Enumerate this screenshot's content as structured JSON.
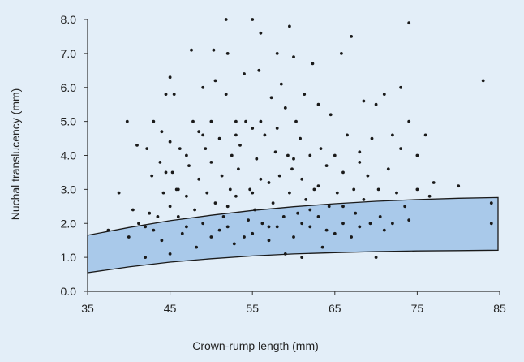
{
  "chart_data": {
    "type": "scatter",
    "xlabel": "Crown-rump length (mm)",
    "ylabel": "Nuchal translucency (mm)",
    "xlim": [
      35,
      85
    ],
    "ylim": [
      0,
      8
    ],
    "x_ticks": [
      "35",
      "45",
      "55",
      "65",
      "75",
      "85"
    ],
    "y_ticks": [
      "0.0",
      "1.0",
      "2.0",
      "3.0",
      "4.0",
      "5.0",
      "6.0",
      "7.0",
      "8.0"
    ],
    "grid": false,
    "band": {
      "fill": "#a9c9ea",
      "stroke": "#1a1a1a",
      "upper": [
        [
          35,
          1.65
        ],
        [
          40,
          1.88
        ],
        [
          45,
          2.08
        ],
        [
          50,
          2.24
        ],
        [
          55,
          2.38
        ],
        [
          60,
          2.49
        ],
        [
          65,
          2.58
        ],
        [
          70,
          2.65
        ],
        [
          75,
          2.7
        ],
        [
          80,
          2.74
        ],
        [
          84.8,
          2.76
        ]
      ],
      "lower": [
        [
          35,
          0.55
        ],
        [
          40,
          0.72
        ],
        [
          45,
          0.86
        ],
        [
          50,
          0.96
        ],
        [
          55,
          1.04
        ],
        [
          60,
          1.1
        ],
        [
          65,
          1.14
        ],
        [
          70,
          1.17
        ],
        [
          75,
          1.19
        ],
        [
          80,
          1.2
        ],
        [
          84.8,
          1.21
        ]
      ]
    },
    "points": [
      [
        37.5,
        1.8
      ],
      [
        38.8,
        2.9
      ],
      [
        39.8,
        5.0
      ],
      [
        40,
        1.6
      ],
      [
        40.5,
        2.4
      ],
      [
        41,
        4.3
      ],
      [
        41.2,
        2.0
      ],
      [
        42,
        1.0
      ],
      [
        42,
        1.9
      ],
      [
        42.2,
        4.2
      ],
      [
        42.5,
        2.3
      ],
      [
        42.8,
        3.4
      ],
      [
        43,
        5.0
      ],
      [
        43,
        1.8
      ],
      [
        43.5,
        2.2
      ],
      [
        43.8,
        3.8
      ],
      [
        44,
        4.7
      ],
      [
        44.2,
        2.9
      ],
      [
        44.5,
        5.8
      ],
      [
        44.5,
        3.5
      ],
      [
        45,
        6.3
      ],
      [
        45,
        4.4
      ],
      [
        45,
        2.5
      ],
      [
        45,
        1.1
      ],
      [
        45.3,
        3.5
      ],
      [
        45.5,
        5.8
      ],
      [
        45.8,
        3.0
      ],
      [
        46,
        2.2
      ],
      [
        46.2,
        4.2
      ],
      [
        46.5,
        1.7
      ],
      [
        47,
        2.8
      ],
      [
        47,
        1.9
      ],
      [
        47.3,
        3.7
      ],
      [
        47.6,
        7.1
      ],
      [
        47.8,
        5.0
      ],
      [
        48,
        2.4
      ],
      [
        48.2,
        1.3
      ],
      [
        48.5,
        4.7
      ],
      [
        48.5,
        3.3
      ],
      [
        49,
        6.0
      ],
      [
        49,
        2.0
      ],
      [
        49.3,
        4.2
      ],
      [
        49.5,
        2.9
      ],
      [
        50,
        1.6
      ],
      [
        50,
        5.0
      ],
      [
        50,
        3.8
      ],
      [
        50.3,
        7.1
      ],
      [
        50.5,
        6.2
      ],
      [
        50.5,
        2.6
      ],
      [
        51,
        4.5
      ],
      [
        51,
        1.8
      ],
      [
        51.3,
        3.4
      ],
      [
        51.5,
        2.2
      ],
      [
        51.8,
        8.0
      ],
      [
        51.8,
        5.8
      ],
      [
        52,
        7.0
      ],
      [
        52,
        1.9
      ],
      [
        52.3,
        3.0
      ],
      [
        52.5,
        4.0
      ],
      [
        52.8,
        1.4
      ],
      [
        53,
        5.0
      ],
      [
        53,
        2.8
      ],
      [
        53.3,
        3.6
      ],
      [
        53.5,
        4.3
      ],
      [
        54,
        6.4
      ],
      [
        54,
        1.6
      ],
      [
        54.2,
        5.0
      ],
      [
        54.5,
        2.1
      ],
      [
        54.7,
        3.0
      ],
      [
        55,
        8.0
      ],
      [
        55,
        4.8
      ],
      [
        55,
        1.7
      ],
      [
        55.3,
        2.4
      ],
      [
        55.5,
        3.9
      ],
      [
        55.8,
        6.5
      ],
      [
        56,
        7.6
      ],
      [
        56,
        5.0
      ],
      [
        56.2,
        2.0
      ],
      [
        56.5,
        4.6
      ],
      [
        57,
        3.2
      ],
      [
        57,
        1.5
      ],
      [
        57.3,
        5.7
      ],
      [
        57.5,
        2.6
      ],
      [
        57.8,
        4.1
      ],
      [
        58,
        7.0
      ],
      [
        58,
        1.9
      ],
      [
        58.3,
        3.4
      ],
      [
        58.5,
        6.1
      ],
      [
        58.8,
        2.2
      ],
      [
        59,
        5.4
      ],
      [
        59,
        1.1
      ],
      [
        59.3,
        4.0
      ],
      [
        59.5,
        7.8
      ],
      [
        59.5,
        2.9
      ],
      [
        59.8,
        3.6
      ],
      [
        60,
        6.9
      ],
      [
        60,
        1.6
      ],
      [
        60.3,
        5.0
      ],
      [
        60.5,
        2.3
      ],
      [
        60.8,
        4.5
      ],
      [
        61,
        1.0
      ],
      [
        61,
        3.3
      ],
      [
        61.3,
        5.8
      ],
      [
        61.5,
        2.7
      ],
      [
        62,
        4.0
      ],
      [
        62,
        1.9
      ],
      [
        62.3,
        6.7
      ],
      [
        62.5,
        3.0
      ],
      [
        63,
        5.5
      ],
      [
        63,
        2.2
      ],
      [
        63.3,
        4.2
      ],
      [
        63.5,
        1.3
      ],
      [
        64,
        3.7
      ],
      [
        64.3,
        2.5
      ],
      [
        64.5,
        5.2
      ],
      [
        65,
        4.0
      ],
      [
        65,
        1.7
      ],
      [
        65.3,
        2.9
      ],
      [
        65.8,
        7.0
      ],
      [
        66,
        3.5
      ],
      [
        66,
        2.0
      ],
      [
        66.5,
        4.6
      ],
      [
        67,
        1.6
      ],
      [
        67,
        7.5
      ],
      [
        67.3,
        3.0
      ],
      [
        67.5,
        2.3
      ],
      [
        68,
        4.1
      ],
      [
        68,
        1.9
      ],
      [
        68.5,
        5.6
      ],
      [
        68.5,
        2.7
      ],
      [
        69,
        3.4
      ],
      [
        69.3,
        2.0
      ],
      [
        69.5,
        4.5
      ],
      [
        70,
        1.0
      ],
      [
        70,
        5.5
      ],
      [
        70.3,
        3.0
      ],
      [
        70.5,
        2.2
      ],
      [
        71,
        5.8
      ],
      [
        71,
        1.8
      ],
      [
        71.5,
        3.6
      ],
      [
        72,
        4.6
      ],
      [
        72,
        2.0
      ],
      [
        72.5,
        2.9
      ],
      [
        73,
        6.0
      ],
      [
        73,
        4.2
      ],
      [
        73.5,
        2.5
      ],
      [
        74,
        7.9
      ],
      [
        74,
        5.0
      ],
      [
        74,
        2.1
      ],
      [
        75,
        4.0
      ],
      [
        75,
        3.0
      ],
      [
        76,
        4.6
      ],
      [
        76.5,
        2.8
      ],
      [
        77,
        3.2
      ],
      [
        80,
        3.1
      ],
      [
        83,
        6.2
      ],
      [
        84,
        2.6
      ],
      [
        84,
        2.0
      ],
      [
        46,
        3.0
      ],
      [
        49,
        4.6
      ],
      [
        53,
        4.6
      ],
      [
        55,
        2.9
      ],
      [
        57,
        1.9
      ],
      [
        61,
        2.0
      ],
      [
        64,
        1.8
      ],
      [
        66,
        2.5
      ],
      [
        68,
        3.8
      ],
      [
        52,
        2.5
      ],
      [
        56,
        3.3
      ],
      [
        60,
        3.9
      ],
      [
        63,
        3.1
      ],
      [
        47,
        4.0
      ],
      [
        58,
        4.8
      ],
      [
        62,
        2.4
      ],
      [
        44,
        1.5
      ]
    ],
    "colors": {
      "background": "#e3eef8",
      "points": "#1a1a1a",
      "band": "#a9c9ea",
      "axis": "#333333"
    }
  }
}
